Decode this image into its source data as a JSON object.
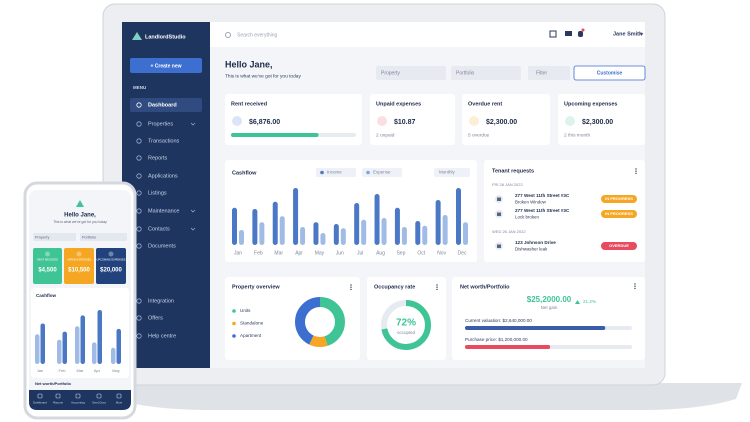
{
  "sidebar": {
    "brand": "LandlordStudio",
    "create": "+ Create new",
    "menu_label": "MENU",
    "items": [
      "Dashboard",
      "Properties",
      "Transactions",
      "Reports",
      "Applications",
      "Listings",
      "Maintenance",
      "Contacts",
      "Documents"
    ],
    "footer_items": [
      "Integration",
      "Offers",
      "Help centre"
    ]
  },
  "topbar": {
    "search": "Search everything",
    "user": "Jane Smith"
  },
  "greeting": {
    "title": "Hello Jane,",
    "subtitle": "This is what we've got for you today"
  },
  "filters": {
    "property": "Property",
    "portfolio": "Portfolio",
    "filter": "Filter",
    "customise": "Customise"
  },
  "cards": [
    {
      "title": "Rent received",
      "amount": "$6,876.00",
      "progress": 70
    },
    {
      "title": "Unpaid expenses",
      "amount": "$10.87",
      "note": "2 unpaid"
    },
    {
      "title": "Overdue rent",
      "amount": "$2,300.00",
      "note": "5 overdue"
    },
    {
      "title": "Upcoming expenses",
      "amount": "$2,300.00",
      "note": "2 this month"
    }
  ],
  "cashflow": {
    "title": "Cashflow",
    "legend": [
      "Income",
      "Expense"
    ],
    "period": "Monthly",
    "months": [
      "Jan",
      "Feb",
      "Mar",
      "Apr",
      "May",
      "Jun",
      "Jul",
      "Aug",
      "Sep",
      "Oct",
      "Nov",
      "Dec"
    ],
    "income": [
      62,
      60,
      72,
      95,
      38,
      35,
      70,
      85,
      62,
      40,
      75,
      95
    ],
    "expense": [
      25,
      38,
      48,
      30,
      20,
      28,
      42,
      45,
      30,
      32,
      50,
      38
    ]
  },
  "tenant_requests": {
    "title": "Tenant requests",
    "groups": [
      {
        "date": "FRI 28 JAN 2022",
        "items": [
          {
            "address": "277 West 11th Street #3C",
            "issue": "Broken Window",
            "status": "IN PROGRESS"
          },
          {
            "address": "277 West 11th Street #3C",
            "issue": "Lock broken",
            "status": "IN PROGRESS"
          }
        ]
      },
      {
        "date": "WED 26 JAN 2022",
        "items": [
          {
            "address": "123 Johnson Drive",
            "issue": "Dishwasher leak",
            "status": "OVERDUE"
          }
        ]
      }
    ]
  },
  "property_overview": {
    "title": "Property overview",
    "segments": [
      {
        "name": "Units",
        "value": 45,
        "color": "#3fc495"
      },
      {
        "name": "Standalone",
        "value": 12,
        "color": "#f5a623"
      },
      {
        "name": "Apartment",
        "value": 43,
        "color": "#3d6fd1"
      }
    ]
  },
  "occupancy": {
    "title": "Occupancy rate",
    "rate": {
      "value": 72,
      "label": "72%"
    },
    "caption": "occupied"
  },
  "net_worth": {
    "title": "Net worth/Portfolio",
    "amount": "$25,2000.00",
    "caption": "Net gain",
    "change": "21.2%",
    "valuation": {
      "label": "Current valuation: $2,640,000.00",
      "progress": 84
    },
    "purchase": {
      "label": "Purchase price: $1,200,000.00",
      "progress": 51
    }
  },
  "phone": {
    "greeting": "Hello Jane,",
    "subtitle": "This is what we've got for you today",
    "filters": [
      "Property",
      "Portfolio"
    ],
    "cards": [
      {
        "label": "RENT RECEIVED",
        "amount": "$4,500",
        "color": "#3fc495"
      },
      {
        "label": "UNPAID EXPENSES",
        "amount": "$10,500",
        "color": "#f5a623"
      },
      {
        "label": "UPCOMING EXPENSES",
        "amount": "$20,000",
        "color": "#22427d"
      }
    ],
    "cashflow": {
      "title": "Cashflow",
      "months": [
        "Jan",
        "Feb",
        "Mar",
        "Apr",
        "May"
      ],
      "income": [
        75,
        60,
        90,
        100,
        65
      ],
      "expense": [
        55,
        45,
        70,
        40,
        30
      ]
    },
    "net_worth": "Net worth/Portfolio",
    "nav": [
      "Dashboard",
      "Reports",
      "Accounting",
      "Send Docs",
      "More"
    ]
  }
}
